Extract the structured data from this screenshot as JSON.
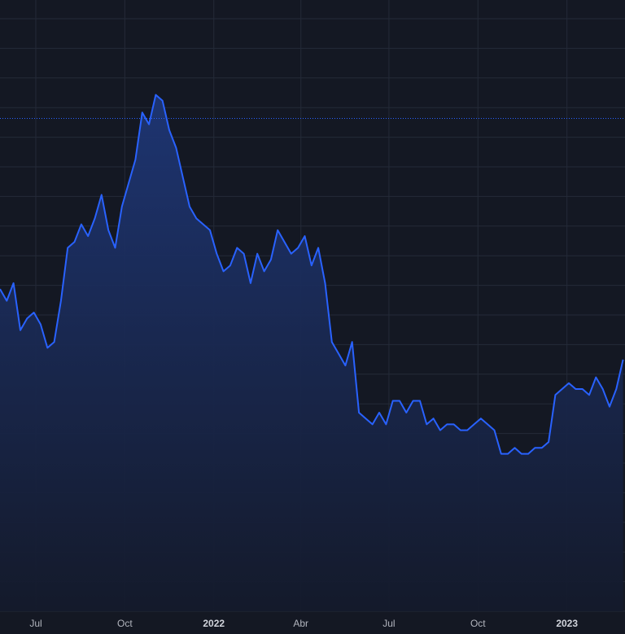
{
  "chart_data": {
    "type": "area",
    "x_ticks": [
      {
        "label": "Jul",
        "date": "2021-07-01",
        "major": false
      },
      {
        "label": "Oct",
        "date": "2021-10-01",
        "major": false
      },
      {
        "label": "2022",
        "date": "2022-01-01",
        "major": true
      },
      {
        "label": "Abr",
        "date": "2022-04-01",
        "major": false
      },
      {
        "label": "Jul",
        "date": "2022-07-01",
        "major": false
      },
      {
        "label": "Oct",
        "date": "2022-10-01",
        "major": false
      },
      {
        "label": "2023",
        "date": "2023-01-01",
        "major": true
      }
    ],
    "xlim": [
      "2021-05-25",
      "2023-03-02"
    ],
    "ylim": [
      0,
      100
    ],
    "grid": true,
    "reference_line": 85,
    "series": [
      {
        "x": [
          "2021-05-25",
          "2021-06-01",
          "2021-06-08",
          "2021-06-15",
          "2021-06-22",
          "2021-06-29",
          "2021-07-06",
          "2021-07-13",
          "2021-07-20",
          "2021-07-27",
          "2021-08-03",
          "2021-08-10",
          "2021-08-17",
          "2021-08-24",
          "2021-08-31",
          "2021-09-07",
          "2021-09-14",
          "2021-09-21",
          "2021-09-28",
          "2021-10-05",
          "2021-10-12",
          "2021-10-19",
          "2021-10-26",
          "2021-11-02",
          "2021-11-09",
          "2021-11-16",
          "2021-11-23",
          "2021-11-30",
          "2021-12-07",
          "2021-12-14",
          "2021-12-21",
          "2021-12-28",
          "2022-01-04",
          "2022-01-11",
          "2022-01-18",
          "2022-01-25",
          "2022-02-01",
          "2022-02-08",
          "2022-02-15",
          "2022-02-22",
          "2022-03-01",
          "2022-03-08",
          "2022-03-15",
          "2022-03-22",
          "2022-03-29",
          "2022-04-05",
          "2022-04-12",
          "2022-04-19",
          "2022-04-26",
          "2022-05-03",
          "2022-05-10",
          "2022-05-17",
          "2022-05-24",
          "2022-05-31",
          "2022-06-07",
          "2022-06-14",
          "2022-06-21",
          "2022-06-28",
          "2022-07-05",
          "2022-07-12",
          "2022-07-19",
          "2022-07-26",
          "2022-08-02",
          "2022-08-09",
          "2022-08-16",
          "2022-08-23",
          "2022-08-30",
          "2022-09-06",
          "2022-09-13",
          "2022-09-20",
          "2022-09-27",
          "2022-10-04",
          "2022-10-11",
          "2022-10-18",
          "2022-10-25",
          "2022-11-01",
          "2022-11-08",
          "2022-11-15",
          "2022-11-22",
          "2022-11-29",
          "2022-12-06",
          "2022-12-13",
          "2022-12-20",
          "2022-12-27",
          "2023-01-03",
          "2023-01-10",
          "2023-01-17",
          "2023-01-24",
          "2023-01-31",
          "2023-02-07",
          "2023-02-14",
          "2023-02-21",
          "2023-02-28"
        ],
        "values": [
          56,
          54,
          57,
          49,
          51,
          52,
          50,
          46,
          47,
          54,
          63,
          64,
          67,
          65,
          68,
          72,
          66,
          63,
          70,
          74,
          78,
          86,
          84,
          89,
          88,
          83,
          80,
          75,
          70,
          68,
          67,
          66,
          62,
          59,
          60,
          63,
          62,
          57,
          62,
          59,
          61,
          66,
          64,
          62,
          63,
          65,
          60,
          63,
          57,
          47,
          45,
          43,
          47,
          35,
          34,
          33,
          35,
          33,
          37,
          37,
          35,
          37,
          37,
          33,
          34,
          32,
          33,
          33,
          32,
          32,
          33,
          34,
          33,
          32,
          28,
          28,
          29,
          28,
          28,
          29,
          29,
          30,
          38,
          39,
          40,
          39,
          39,
          38,
          41,
          39,
          36,
          39,
          44
        ]
      }
    ]
  },
  "colors": {
    "background": "#141823",
    "grid": "#242a38",
    "line": "#2962ff",
    "fill_top": "#1e3675",
    "fill_bottom": "#141a2b",
    "reference": "#2962ff",
    "axis_text": "#b2b5be"
  }
}
